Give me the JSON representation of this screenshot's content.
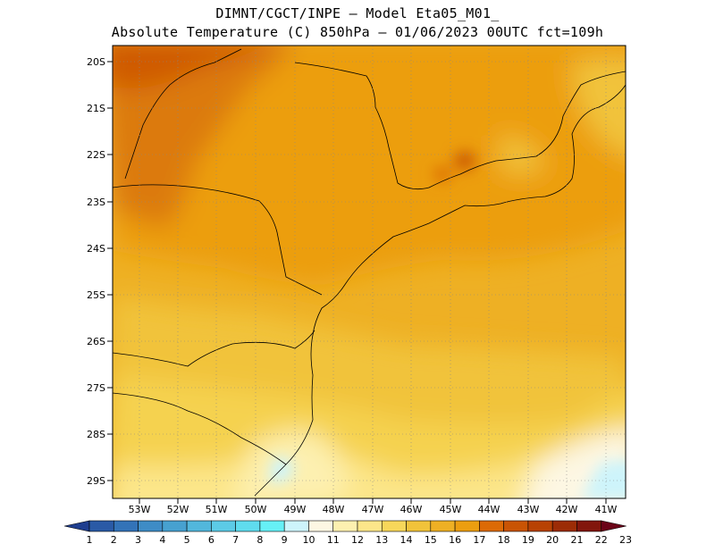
{
  "header": {
    "line1": "DIMNT/CGCT/INPE –  Model Eta05_M01_",
    "line2": "Absolute Temperature (C) 850hPa –  01/06/2023 00UTC fct=109h"
  },
  "map": {
    "lat_labels": [
      "20S",
      "21S",
      "22S",
      "23S",
      "24S",
      "25S",
      "26S",
      "27S",
      "28S",
      "29S"
    ],
    "lon_labels": [
      "53W",
      "52W",
      "51W",
      "50W",
      "49W",
      "48W",
      "47W",
      "46W",
      "45W",
      "44W",
      "43W",
      "42W",
      "41W"
    ],
    "lat_range": [
      -29.4,
      -19.6
    ],
    "lon_range": [
      -53.8,
      -40.5
    ],
    "grid": "dotted"
  },
  "colorbar": {
    "labels": [
      "1",
      "2",
      "3",
      "4",
      "5",
      "6",
      "7",
      "8",
      "9",
      "10",
      "11",
      "12",
      "13",
      "14",
      "15",
      "16",
      "17",
      "18",
      "19",
      "20",
      "21",
      "22",
      "23"
    ],
    "colors": [
      "#1f3e8f",
      "#2a5aa6",
      "#3373b8",
      "#3e8cc6",
      "#47a1d0",
      "#52b7dc",
      "#5ccbe6",
      "#5fdcee",
      "#66f0f6",
      "#cdf4fb",
      "#fdf7e3",
      "#fdf0b0",
      "#fce68a",
      "#f7d75a",
      "#f1c33a",
      "#eeb024",
      "#ec9e10",
      "#dc6a06",
      "#c95404",
      "#b84203",
      "#9c2c06",
      "#82160c",
      "#6b0418"
    ]
  }
}
